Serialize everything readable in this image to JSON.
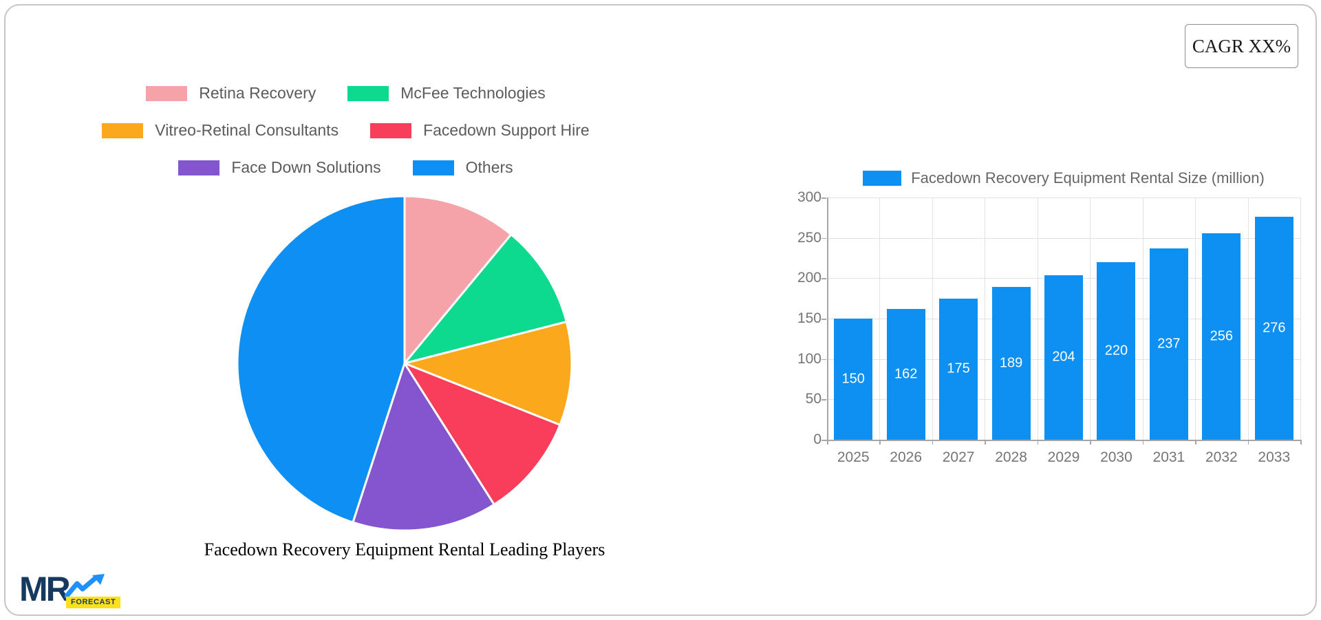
{
  "cagr_box": {
    "label": "CAGR XX%"
  },
  "logo": {
    "mr": "MR",
    "forecast": "FORECAST",
    "navy": "#16395f",
    "arrow_blue": "#1e90ff",
    "badge_yellow": "#ffe01a"
  },
  "colors": {
    "bar_blue": "#0e8ff2",
    "grid": "#e2e2e2",
    "axis": "#a6a6a6",
    "tick_label": "#757575",
    "legend_text": "#5b5b5b"
  },
  "chart_data": [
    {
      "type": "pie",
      "title": "Facedown Recovery Equipment Rental Leading Players",
      "labels": [
        "Retina Recovery",
        "McFee Technologies",
        "Vitreo-Retinal Consultants",
        "Facedown Support Hire",
        "Face Down Solutions",
        "Others"
      ],
      "values_percent": [
        11,
        10,
        10,
        10,
        14,
        45
      ],
      "colors": [
        "#f6a2a9",
        "#0dd98f",
        "#fba81c",
        "#f93e5c",
        "#8355ce",
        "#0e8ff4"
      ],
      "legend_rows": [
        [
          0,
          1
        ],
        [
          2,
          3
        ],
        [
          4,
          5
        ]
      ],
      "legend_position": "top",
      "start_angle_deg": 0,
      "direction": "clockwise",
      "slice_border_color": "#ffffff"
    },
    {
      "type": "bar",
      "legend_label": "Facedown Recovery Equipment Rental Size (million)",
      "categories": [
        "2025",
        "2026",
        "2027",
        "2028",
        "2029",
        "2030",
        "2031",
        "2032",
        "2033"
      ],
      "values": [
        150,
        162,
        175,
        189,
        204,
        220,
        237,
        256,
        276
      ],
      "ylim": [
        0,
        300
      ],
      "yticks": [
        0,
        50,
        100,
        150,
        200,
        250,
        300
      ],
      "bar_color": "#0e8ff2",
      "value_label_color": "#ffffff",
      "grid": true,
      "legend_position": "top"
    }
  ]
}
